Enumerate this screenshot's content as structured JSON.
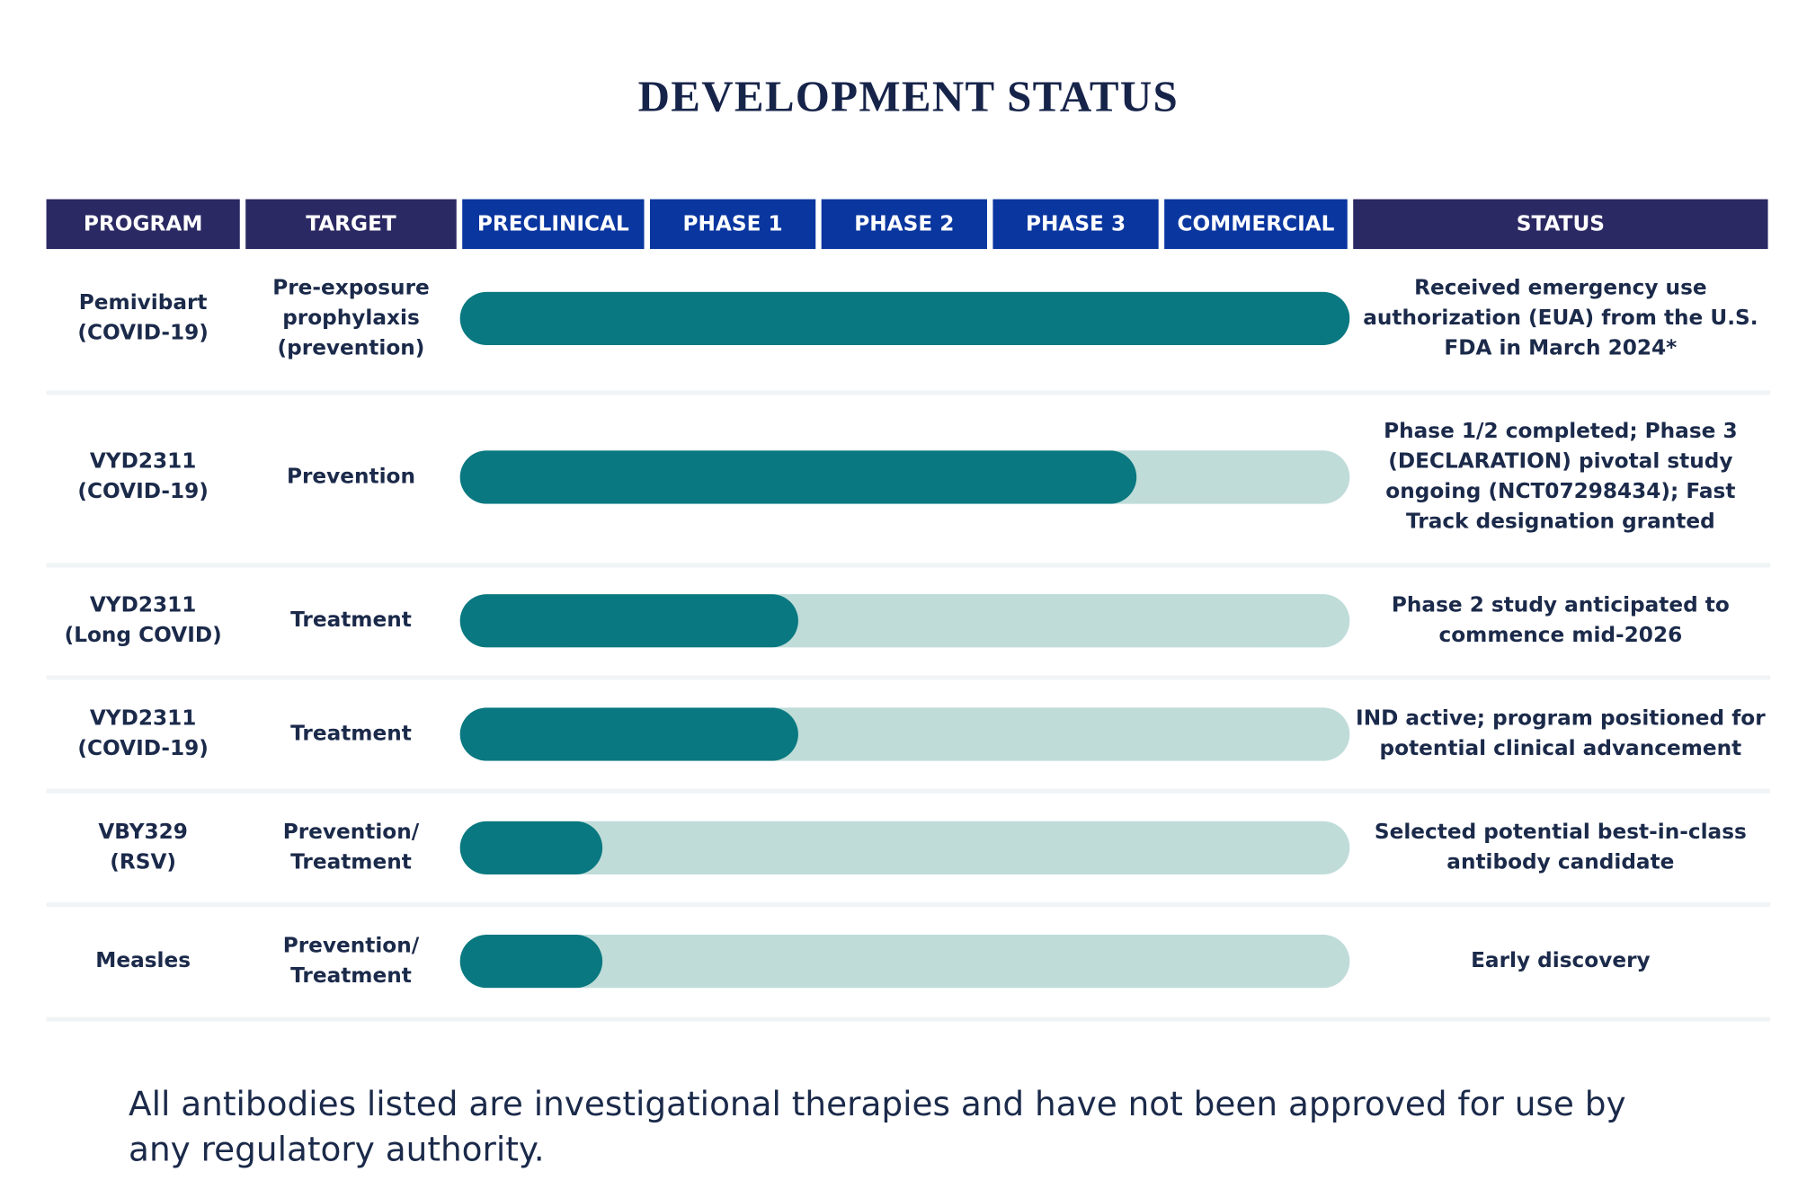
{
  "title": "DEVELOPMENT STATUS",
  "header": {
    "program": "PROGRAM",
    "target": "TARGET",
    "phases": [
      "PRECLINICAL",
      "PHASE 1",
      "PHASE 2",
      "PHASE 3",
      "COMMERCIAL"
    ],
    "status": "STATUS"
  },
  "rows": [
    {
      "program": "Pemivibart\n(COVID-19)",
      "target": "Pre-exposure\nprophylaxis\n(prevention)",
      "progress": 5,
      "status": "Received emergency use\nauthorization (EUA) from the U.S.\nFDA in March 2024*"
    },
    {
      "program": "VYD2311\n(COVID-19)",
      "target": "Prevention",
      "progress": 3.8,
      "status": "Phase 1/2 completed; Phase 3\n(DECLARATION) pivotal study\nongoing (NCT07298434); Fast\nTrack designation granted"
    },
    {
      "program": "VYD2311\n(Long COVID)",
      "target": "Treatment",
      "progress": 1.9,
      "status": "Phase 2 study anticipated to\ncommence mid-2026"
    },
    {
      "program": "VYD2311\n(COVID-19)",
      "target": "Treatment",
      "progress": 1.9,
      "status": "IND active; program positioned for\npotential clinical advancement"
    },
    {
      "program": "VBY329\n(RSV)",
      "target": "Prevention/\nTreatment",
      "progress": 0.8,
      "status": "Selected potential best-in-class\nantibody candidate"
    },
    {
      "program": "Measles",
      "target": "Prevention/\nTreatment",
      "progress": 0.8,
      "status": "Early discovery"
    }
  ],
  "footnote": "All antibodies listed are investigational therapies and have not been approved for use by any regulatory authority."
}
